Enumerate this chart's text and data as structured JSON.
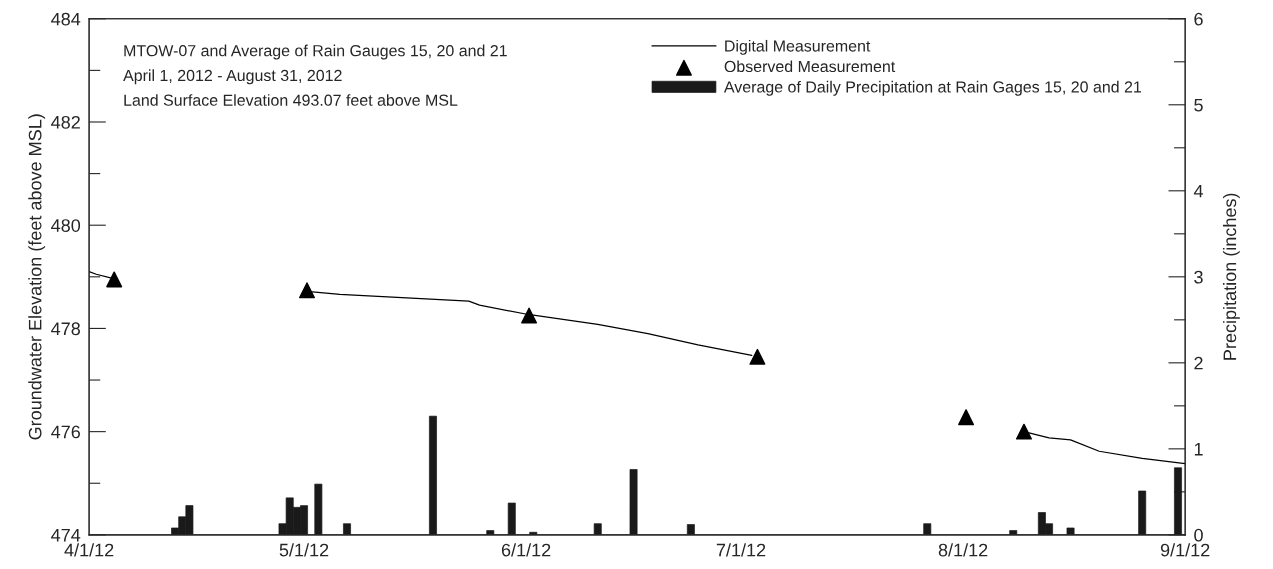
{
  "chart_data": {
    "type": "line",
    "xlabel": null,
    "ylabel": "Groundwater Elevation (feet above MSL)",
    "y2label": "Precipitation (inches)",
    "annotations": [
      "MTOW-07 and Average of Rain Gauges 15, 20 and 21",
      "April 1, 2012 - August 31, 2012",
      "Land Surface Elevation 493.07 feet above MSL"
    ],
    "xlim": [
      "2012-04-01",
      "2012-09-01"
    ],
    "xticks": [
      {
        "value": "2012-04-01",
        "label": "4/1/12"
      },
      {
        "value": "2012-05-01",
        "label": "5/1/12"
      },
      {
        "value": "2012-06-01",
        "label": "6/1/12"
      },
      {
        "value": "2012-07-01",
        "label": "7/1/12"
      },
      {
        "value": "2012-08-01",
        "label": "8/1/12"
      },
      {
        "value": "2012-09-01",
        "label": "9/1/12"
      }
    ],
    "ylim": [
      474,
      484
    ],
    "yticks": [
      474,
      {
        "value": 475,
        "label": null
      },
      476,
      {
        "value": 477,
        "label": null
      },
      478,
      {
        "value": 479,
        "label": null
      },
      480,
      {
        "value": 481,
        "label": null
      },
      482,
      {
        "value": 483,
        "label": null
      },
      484
    ],
    "y2lim": [
      0,
      6
    ],
    "y2ticks": [
      0,
      {
        "value": 0.5,
        "label": null
      },
      1,
      {
        "value": 1.5,
        "label": null
      },
      2,
      {
        "value": 2.5,
        "label": null
      },
      3,
      {
        "value": 3.5,
        "label": null
      },
      4,
      {
        "value": 4.5,
        "label": null
      },
      5,
      {
        "value": 5.5,
        "label": null
      },
      6
    ],
    "grid": false,
    "legend": "top right",
    "series": [
      {
        "type": "bar",
        "axis": "y2",
        "name": "Average of Daily Precipitation at Rain Gages 15, 20 and 21",
        "color": "#1a1a1a",
        "x": [
          "2012-04-13",
          "2012-04-14",
          "2012-04-15",
          "2012-04-28",
          "2012-04-29",
          "2012-04-30",
          "2012-05-01",
          "2012-05-03",
          "2012-05-07",
          "2012-05-19",
          "2012-05-27",
          "2012-05-30",
          "2012-06-02",
          "2012-06-11",
          "2012-06-16",
          "2012-06-24",
          "2012-07-27",
          "2012-08-08",
          "2012-08-12",
          "2012-08-13",
          "2012-08-16",
          "2012-08-26",
          "2012-08-31"
        ],
        "values": [
          0.08,
          0.21,
          0.34,
          0.13,
          0.43,
          0.32,
          0.34,
          0.59,
          0.13,
          1.38,
          0.05,
          0.37,
          0.03,
          0.13,
          0.76,
          0.12,
          0.13,
          0.05,
          0.26,
          0.13,
          0.08,
          0.51,
          0.78
        ]
      },
      {
        "axis": "y",
        "name": "Digital Measurement",
        "color": "#000000",
        "marker": "none",
        "x": [
          "2012-04-01",
          "2012-04-02",
          "2012-04-04",
          "2012-04-30",
          "2012-05-01T10:00",
          "2012-05-06",
          "2012-05-14",
          "2012-05-24",
          "2012-05-25T12:00",
          "2012-06-01T07:00",
          "2012-06-11",
          "2012-06-18",
          "2012-06-25",
          "2012-07-02T12:00",
          "2012-07-03",
          "2012-08-09",
          "2012-08-09T12:00",
          "2012-08-13",
          "2012-08-16",
          "2012-08-20",
          "2012-08-26",
          "2012-09-01"
        ],
        "values": [
          479.1,
          479.05,
          478.98,
          null,
          478.72,
          478.66,
          478.6,
          478.53,
          478.45,
          478.27,
          478.08,
          477.9,
          477.68,
          477.48,
          null,
          null,
          476.0,
          475.88,
          475.84,
          475.62,
          475.48,
          475.38
        ]
      },
      {
        "type": "scatter",
        "axis": "y",
        "name": "Observed Measurement",
        "color": "#000000",
        "marker": "triangle",
        "x": [
          "2012-04-04T12:00",
          "2012-05-01T10:00",
          "2012-06-01T10:00",
          "2012-07-03T07:00",
          "2012-08-01T10:00",
          "2012-08-09T12:00"
        ],
        "values": [
          478.95,
          478.74,
          478.25,
          477.45,
          476.28,
          476.0
        ]
      }
    ]
  }
}
